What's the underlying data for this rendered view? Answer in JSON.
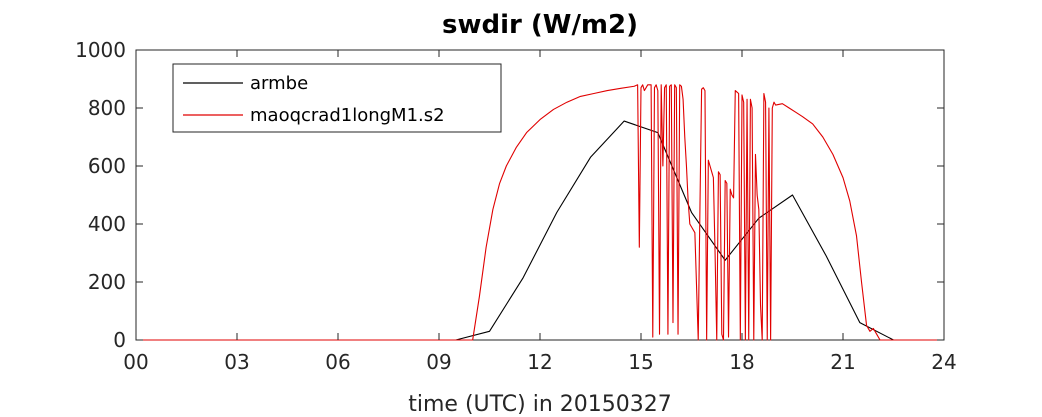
{
  "chart_data": {
    "type": "line",
    "title": "swdir  (W/m2)",
    "xlabel": "time (UTC) in 20150327",
    "ylabel": "",
    "xlim": [
      0,
      24
    ],
    "ylim": [
      0,
      1000
    ],
    "xticks": [
      0,
      3,
      6,
      9,
      12,
      15,
      18,
      21,
      24
    ],
    "xtick_labels": [
      "00",
      "03",
      "06",
      "09",
      "12",
      "15",
      "18",
      "21",
      "24"
    ],
    "yticks": [
      0,
      200,
      400,
      600,
      800,
      1000
    ],
    "ytick_labels": [
      "0",
      "200",
      "400",
      "600",
      "800",
      "1000"
    ],
    "grid": false,
    "legend_position": "top-left",
    "series": [
      {
        "name": "armbe",
        "color": "#000000",
        "x": [
          0,
          1,
          2,
          3,
          4,
          5,
          6,
          7,
          8,
          9,
          9.5,
          10.5,
          11.5,
          12.5,
          13.5,
          14.5,
          15.5,
          16.5,
          17.5,
          18.5,
          19.5,
          20.5,
          21.5,
          22.5,
          23.5,
          24
        ],
        "y": [
          0,
          0,
          0,
          0,
          0,
          0,
          0,
          0,
          0,
          0,
          0,
          30,
          215,
          440,
          630,
          755,
          715,
          440,
          275,
          420,
          500,
          290,
          60,
          0,
          0,
          0
        ]
      },
      {
        "name": "maoqcrad1longM1.s2",
        "color": "#e00000",
        "x": [
          0,
          10.0,
          10.2,
          10.4,
          10.6,
          10.8,
          11.0,
          11.3,
          11.6,
          12.0,
          12.4,
          12.8,
          13.2,
          13.6,
          14.0,
          14.4,
          14.8,
          14.9,
          14.95,
          15.0,
          15.05,
          15.1,
          15.2,
          15.3,
          15.35,
          15.4,
          15.45,
          15.5,
          15.55,
          15.6,
          15.65,
          15.7,
          15.75,
          15.8,
          15.85,
          15.9,
          15.95,
          16.0,
          16.05,
          16.1,
          16.15,
          16.2,
          16.25,
          16.3,
          16.35,
          16.4,
          16.45,
          16.5,
          16.6,
          16.7,
          16.75,
          16.8,
          16.85,
          16.9,
          16.95,
          17.0,
          17.05,
          17.1,
          17.15,
          17.2,
          17.25,
          17.3,
          17.35,
          17.4,
          17.45,
          17.5,
          17.55,
          17.6,
          17.65,
          17.7,
          17.75,
          17.8,
          17.85,
          17.9,
          17.95,
          18.0,
          18.05,
          18.1,
          18.15,
          18.2,
          18.25,
          18.3,
          18.35,
          18.4,
          18.45,
          18.5,
          18.55,
          18.6,
          18.65,
          18.7,
          18.75,
          18.8,
          18.85,
          18.9,
          18.95,
          19.0,
          19.2,
          19.4,
          19.6,
          19.8,
          20.1,
          20.4,
          20.7,
          21.0,
          21.2,
          21.4,
          21.55,
          21.7,
          21.8,
          21.9,
          22.0,
          22.1,
          24
        ],
        "y": [
          0,
          0,
          150,
          320,
          450,
          540,
          600,
          665,
          715,
          760,
          795,
          820,
          840,
          850,
          860,
          868,
          875,
          880,
          320,
          870,
          880,
          860,
          880,
          880,
          10,
          870,
          880,
          860,
          20,
          880,
          600,
          870,
          880,
          20,
          875,
          880,
          60,
          880,
          870,
          20,
          880,
          875,
          830,
          700,
          600,
          480,
          400,
          390,
          370,
          0,
          450,
          865,
          870,
          860,
          0,
          620,
          600,
          580,
          560,
          300,
          0,
          580,
          570,
          20,
          0,
          550,
          540,
          10,
          520,
          500,
          490,
          860,
          855,
          850,
          0,
          845,
          820,
          0,
          830,
          0,
          830,
          800,
          0,
          640,
          500,
          450,
          120,
          0,
          850,
          820,
          0,
          800,
          0,
          800,
          820,
          810,
          815,
          800,
          785,
          770,
          745,
          700,
          640,
          560,
          480,
          360,
          200,
          50,
          30,
          40,
          20,
          0,
          0
        ]
      }
    ]
  }
}
